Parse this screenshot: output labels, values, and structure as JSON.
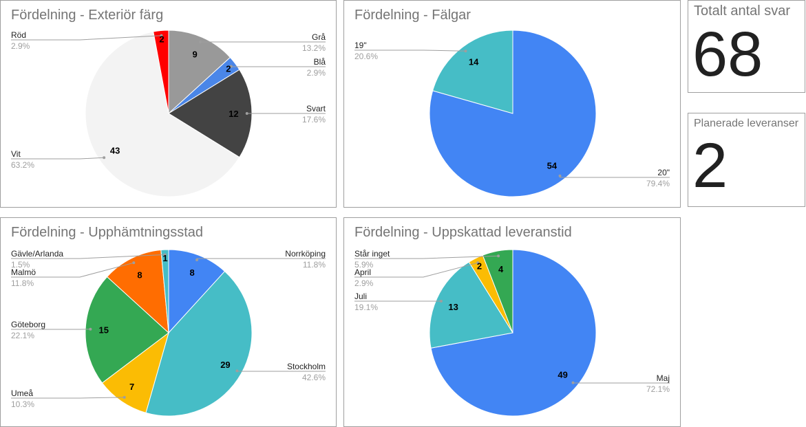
{
  "chart_data": [
    {
      "type": "pie",
      "title": "Fördelning - Exteriör färg",
      "slices": [
        {
          "label": "Grå",
          "value": 9,
          "percent": "13.2%",
          "color": "#999999"
        },
        {
          "label": "Blå",
          "value": 2,
          "percent": "2.9%",
          "color": "#4a86e8"
        },
        {
          "label": "Svart",
          "value": 12,
          "percent": "17.6%",
          "color": "#434343"
        },
        {
          "label": "Vit",
          "value": 43,
          "percent": "63.2%",
          "color": "#f3f3f3"
        },
        {
          "label": "Röd",
          "value": 2,
          "percent": "2.9%",
          "color": "#ff0000"
        }
      ]
    },
    {
      "type": "pie",
      "title": "Fördelning - Fälgar",
      "slices": [
        {
          "label": "20\"",
          "value": 54,
          "percent": "79.4%",
          "color": "#4285f4"
        },
        {
          "label": "19\"",
          "value": 14,
          "percent": "20.6%",
          "color": "#46bdc6"
        }
      ]
    },
    {
      "type": "pie",
      "title": "Fördelning - Upphämtningsstad",
      "slices": [
        {
          "label": "Norrköping",
          "value": 8,
          "percent": "11.8%",
          "color": "#4285f4"
        },
        {
          "label": "Stockholm",
          "value": 29,
          "percent": "42.6%",
          "color": "#46bdc6"
        },
        {
          "label": "Umeå",
          "value": 7,
          "percent": "10.3%",
          "color": "#fbbc04"
        },
        {
          "label": "Göteborg",
          "value": 15,
          "percent": "22.1%",
          "color": "#34a853"
        },
        {
          "label": "Malmö",
          "value": 8,
          "percent": "11.8%",
          "color": "#ff6d01"
        },
        {
          "label": "Gävle/Arlanda",
          "value": 1,
          "percent": "1.5%",
          "color": "#46bdc6"
        }
      ]
    },
    {
      "type": "pie",
      "title": "Fördelning - Uppskattad leveranstid",
      "slices": [
        {
          "label": "Maj",
          "value": 49,
          "percent": "72.1%",
          "color": "#4285f4"
        },
        {
          "label": "Juli",
          "value": 13,
          "percent": "19.1%",
          "color": "#46bdc6"
        },
        {
          "label": "April",
          "value": 2,
          "percent": "2.9%",
          "color": "#fbbc04"
        },
        {
          "label": "Står inget",
          "value": 4,
          "percent": "5.9%",
          "color": "#34a853"
        }
      ]
    }
  ],
  "kpis": [
    {
      "title": "Totalt antal svar",
      "value": "68"
    },
    {
      "title": "Planerade leveranser",
      "value": "2"
    }
  ]
}
